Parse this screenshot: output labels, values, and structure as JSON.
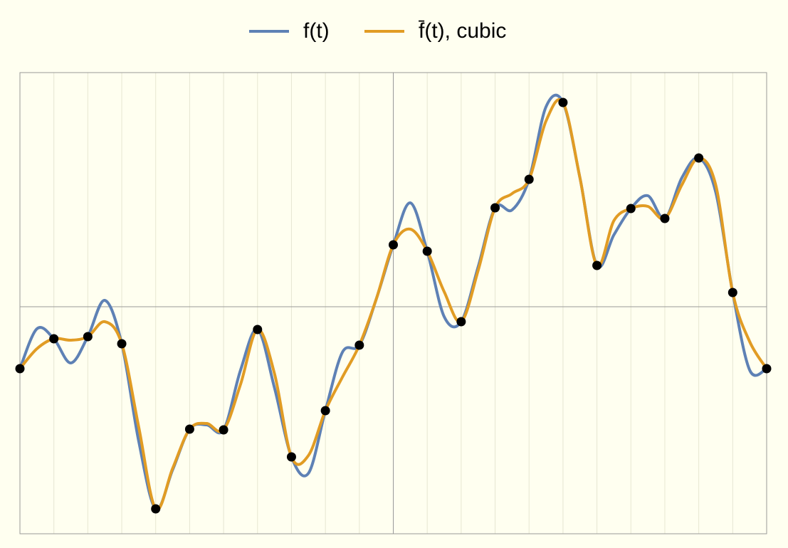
{
  "chart_data": {
    "type": "line",
    "x": [
      -11,
      -10.5,
      -10,
      -9.5,
      -9,
      -8.5,
      -8,
      -7.5,
      -7,
      -6.5,
      -6,
      -5.5,
      -5,
      -4.5,
      -4,
      -3.5,
      -3,
      -2.5,
      -2,
      -1.5,
      -1,
      -0.5,
      0,
      0.5,
      1,
      1.5,
      2,
      2.5,
      3,
      3.5,
      4,
      4.5,
      5,
      5.5,
      6,
      6.5,
      7,
      7.5,
      8,
      8.5,
      9,
      9.5,
      10,
      10.5,
      11
    ],
    "series": [
      {
        "name": "f(t)",
        "color": "#5e81b5",
        "values": [
          -87,
          -31,
          -45,
          -79,
          -42,
          9,
          -52,
          -189,
          -284,
          -229,
          -172,
          -166,
          -173,
          -89,
          -32,
          -114,
          -211,
          -234,
          -146,
          -64,
          -54,
          11,
          87,
          146,
          78,
          -14,
          -21,
          56,
          139,
          136,
          179,
          281,
          287,
          181,
          58,
          101,
          138,
          156,
          124,
          181,
          209,
          161,
          20,
          -89,
          -87
        ]
      },
      {
        "name": "f̄(t), cubic",
        "color": "#e19c24",
        "values": [
          -87,
          -59,
          -45,
          -47,
          -42,
          -21,
          -52,
          -169,
          -284,
          -227,
          -172,
          -164,
          -173,
          -109,
          -32,
          -94,
          -211,
          -209,
          -146,
          -99,
          -54,
          11,
          87,
          109,
          78,
          21,
          -21,
          51,
          139,
          159,
          179,
          261,
          287,
          181,
          58,
          121,
          138,
          141,
          124,
          171,
          209,
          171,
          20,
          -49,
          -87
        ]
      }
    ],
    "points": {
      "color": "#000000",
      "x": [
        -11,
        -10,
        -9,
        -8,
        -7,
        -6,
        -5,
        -4,
        -3,
        -2,
        -1,
        0,
        1,
        2,
        3,
        4,
        5,
        6,
        7,
        8,
        9,
        10,
        11
      ],
      "values": [
        -87,
        -45,
        -42,
        -52,
        -284,
        -172,
        -173,
        -32,
        -211,
        -146,
        -54,
        87,
        78,
        -21,
        139,
        179,
        287,
        58,
        138,
        124,
        209,
        20,
        -87
      ]
    },
    "xlim": [
      -11,
      11
    ],
    "ylim": [
      -319,
      329
    ],
    "grid": true
  }
}
